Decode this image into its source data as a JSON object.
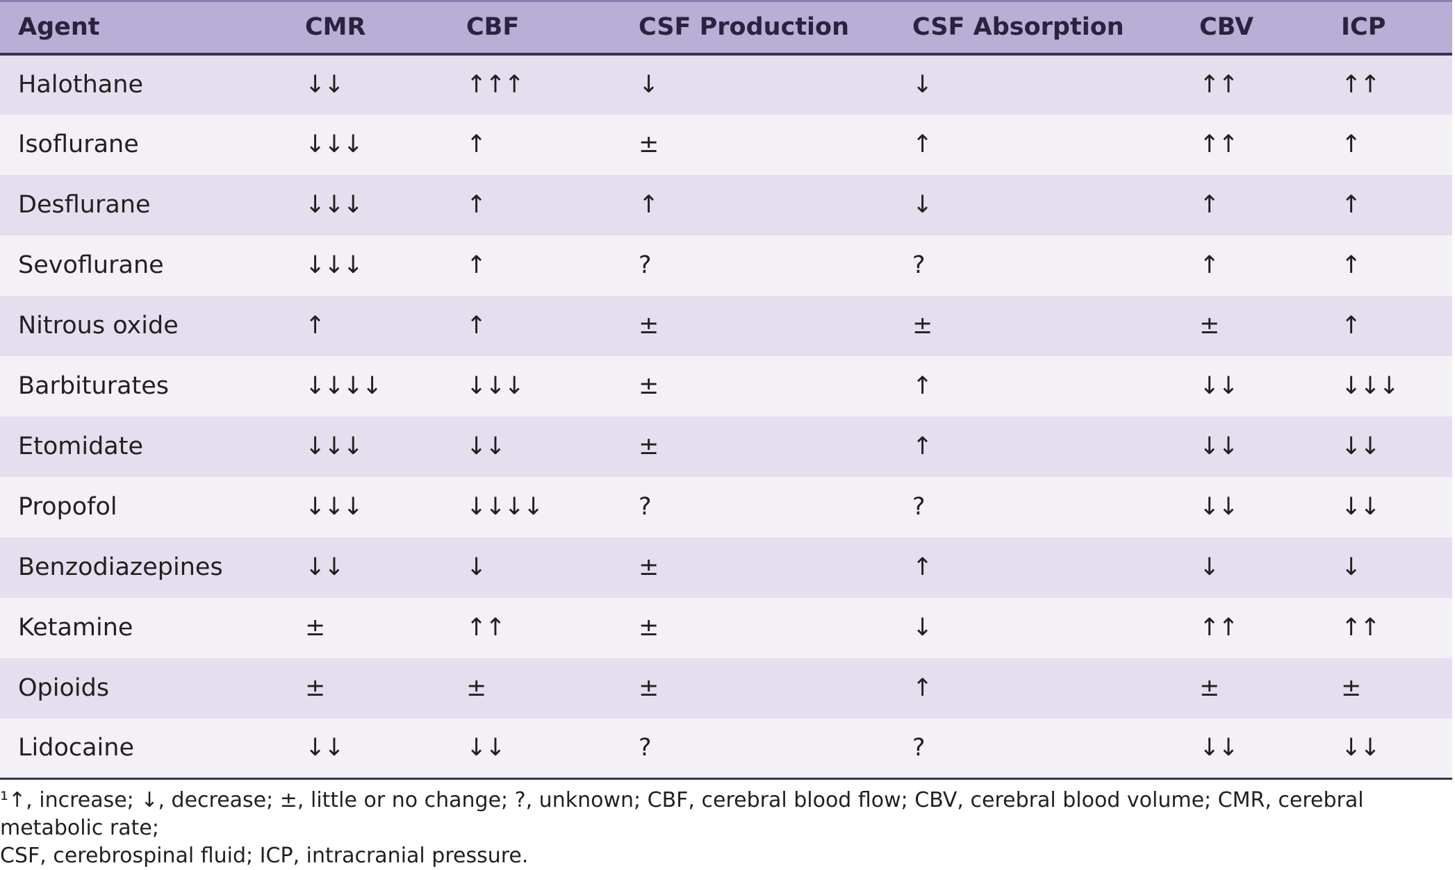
{
  "table": {
    "headers": [
      "Agent",
      "CMR",
      "CBF",
      "CSF Production",
      "CSF Absorption",
      "CBV",
      "ICP"
    ],
    "rows": [
      [
        "Halothane",
        "↓↓",
        "↑↑↑",
        "↓",
        "↓",
        "↑↑",
        "↑↑"
      ],
      [
        "Isoflurane",
        "↓↓↓",
        "↑",
        "±",
        "↑",
        "↑↑",
        "↑"
      ],
      [
        "Desflurane",
        "↓↓↓",
        "↑",
        "↑",
        "↓",
        "↑",
        "↑"
      ],
      [
        "Sevoflurane",
        "↓↓↓",
        "↑",
        "?",
        "?",
        "↑",
        "↑"
      ],
      [
        "Nitrous oxide",
        "↑",
        "↑",
        "±",
        "±",
        "±",
        "↑"
      ],
      [
        "Barbiturates",
        "↓↓↓↓",
        "↓↓↓",
        "±",
        "↑",
        "↓↓",
        "↓↓↓"
      ],
      [
        "Etomidate",
        "↓↓↓",
        "↓↓",
        "±",
        "↑",
        "↓↓",
        "↓↓"
      ],
      [
        "Propofol",
        "↓↓↓",
        "↓↓↓↓",
        "?",
        "?",
        "↓↓",
        "↓↓"
      ],
      [
        "Benzodiazepines",
        "↓↓",
        "↓",
        "±",
        "↑",
        "↓",
        "↓"
      ],
      [
        "Ketamine",
        "±",
        "↑↑",
        "±",
        "↓",
        "↑↑",
        "↑↑"
      ],
      [
        "Opioids",
        "±",
        "±",
        "±",
        "↑",
        "±",
        "±"
      ],
      [
        "Lidocaine",
        "↓↓",
        "↓↓",
        "?",
        "?",
        "↓↓",
        "↓↓"
      ]
    ]
  },
  "footnote": {
    "line1": "¹↑, increase; ↓, decrease; ±, little or no change; ?, unknown; CBF, cerebral blood flow; CBV, cerebral blood volume; CMR, cerebral metabolic rate;",
    "line2": "CSF, cerebrospinal fluid; ICP, intracranial pressure."
  }
}
